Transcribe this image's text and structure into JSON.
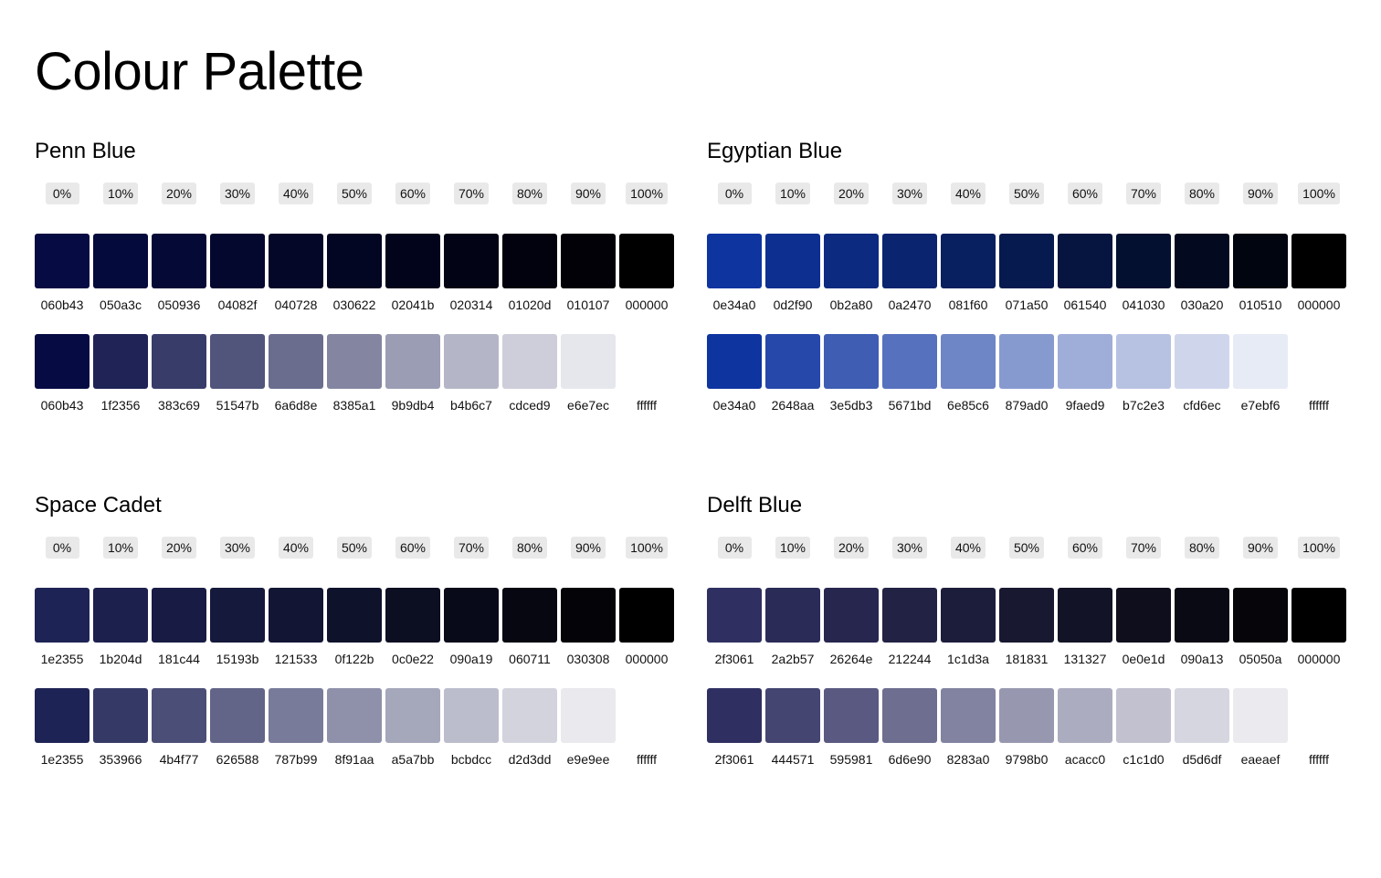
{
  "title": "Colour Palette",
  "percent_labels": [
    "0%",
    "10%",
    "20%",
    "30%",
    "40%",
    "50%",
    "60%",
    "70%",
    "80%",
    "90%",
    "100%"
  ],
  "palettes": [
    {
      "name": "Penn Blue",
      "shades": [
        "060b43",
        "050a3c",
        "050936",
        "04082f",
        "040728",
        "030622",
        "02041b",
        "020314",
        "01020d",
        "010107",
        "000000"
      ],
      "tints": [
        "060b43",
        "1f2356",
        "383c69",
        "51547b",
        "6a6d8e",
        "8385a1",
        "9b9db4",
        "b4b6c7",
        "cdced9",
        "e6e7ec",
        "ffffff"
      ]
    },
    {
      "name": "Egyptian Blue",
      "shades": [
        "0e34a0",
        "0d2f90",
        "0b2a80",
        "0a2470",
        "081f60",
        "071a50",
        "061540",
        "041030",
        "030a20",
        "010510",
        "000000"
      ],
      "tints": [
        "0e34a0",
        "2648aa",
        "3e5db3",
        "5671bd",
        "6e85c6",
        "879ad0",
        "9faed9",
        "b7c2e3",
        "cfd6ec",
        "e7ebf6",
        "ffffff"
      ]
    },
    {
      "name": "Space Cadet",
      "shades": [
        "1e2355",
        "1b204d",
        "181c44",
        "15193b",
        "121533",
        "0f122b",
        "0c0e22",
        "090a19",
        "060711",
        "030308",
        "000000"
      ],
      "tints": [
        "1e2355",
        "353966",
        "4b4f77",
        "626588",
        "787b99",
        "8f91aa",
        "a5a7bb",
        "bcbdcc",
        "d2d3dd",
        "e9e9ee",
        "ffffff"
      ]
    },
    {
      "name": "Delft Blue",
      "shades": [
        "2f3061",
        "2a2b57",
        "26264e",
        "212244",
        "1c1d3a",
        "181831",
        "131327",
        "0e0e1d",
        "090a13",
        "05050a",
        "000000"
      ],
      "tints": [
        "2f3061",
        "444571",
        "595981",
        "6d6e90",
        "8283a0",
        "9798b0",
        "acacc0",
        "c1c1d0",
        "d5d6df",
        "eaeaef",
        "ffffff"
      ]
    }
  ]
}
